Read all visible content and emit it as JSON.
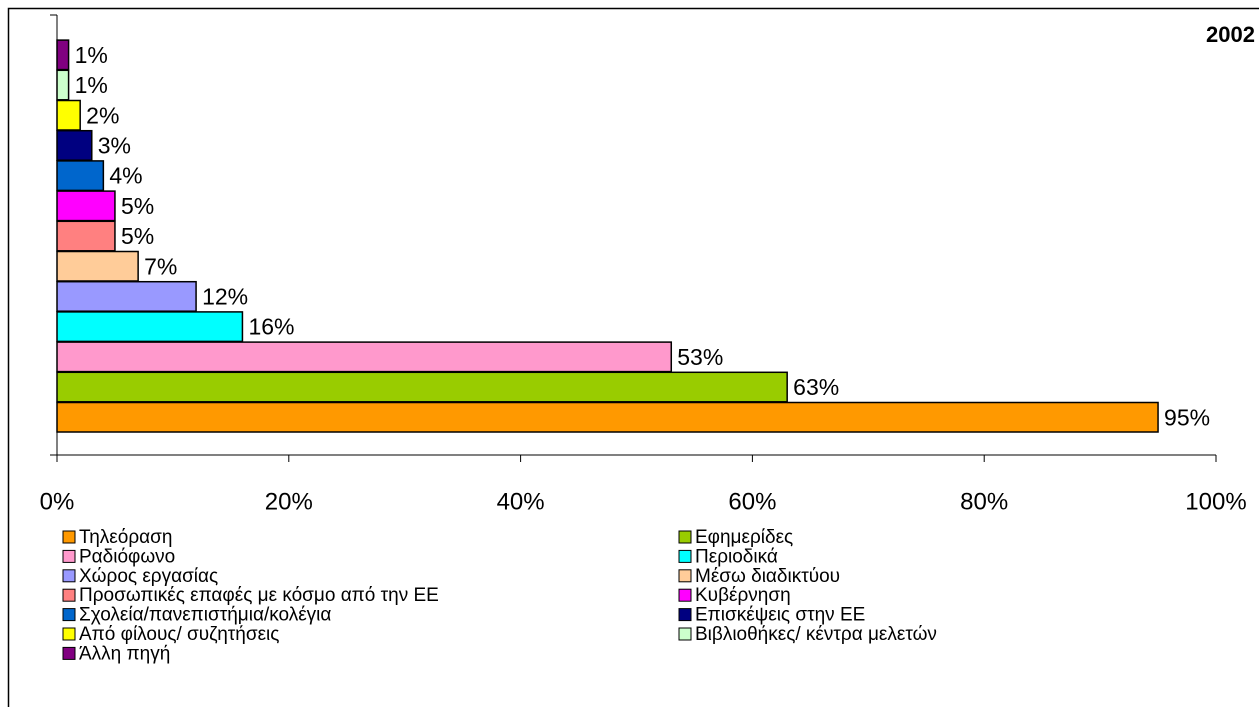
{
  "chart_data": {
    "type": "bar",
    "orientation": "horizontal",
    "title": "2002",
    "categories": [
      "Τηλεόραση",
      "Εφημερίδες",
      "Ραδιόφωνο",
      "Περιοδικά",
      "Χώρος εργασίας",
      "Μέσω διαδικτύου",
      "Προσωπικές επαφές με κόσμο από την ΕΕ",
      "Κυβέρνηση",
      "Σχολεία/πανεπιστήμια/κολέγια",
      "Επισκέψεις στην ΕΕ",
      "Από φίλους/ συζητήσεις",
      "Βιβλιοθήκες/ κέντρα μελετών",
      "Άλλη πηγή"
    ],
    "values": [
      95,
      63,
      53,
      16,
      12,
      7,
      5,
      5,
      4,
      3,
      2,
      1,
      1
    ],
    "value_labels": [
      "95%",
      "63%",
      "53%",
      "16%",
      "12%",
      "7%",
      "5%",
      "5%",
      "4%",
      "3%",
      "2%",
      "1%",
      "1%"
    ],
    "colors": [
      "#ff9900",
      "#99cc00",
      "#ff99cc",
      "#00ffff",
      "#9999ff",
      "#ffcc99",
      "#ff8080",
      "#ff00ff",
      "#0066cc",
      "#000080",
      "#ffff00",
      "#ccffcc",
      "#800080"
    ],
    "xlim": [
      0,
      100
    ],
    "xticks": [
      {
        "value": 0,
        "label": "0%"
      },
      {
        "value": 20,
        "label": "20%"
      },
      {
        "value": 40,
        "label": "40%"
      },
      {
        "value": 60,
        "label": "60%"
      },
      {
        "value": 80,
        "label": "80%"
      },
      {
        "value": 100,
        "label": "100%"
      }
    ],
    "legend": "bottom"
  }
}
